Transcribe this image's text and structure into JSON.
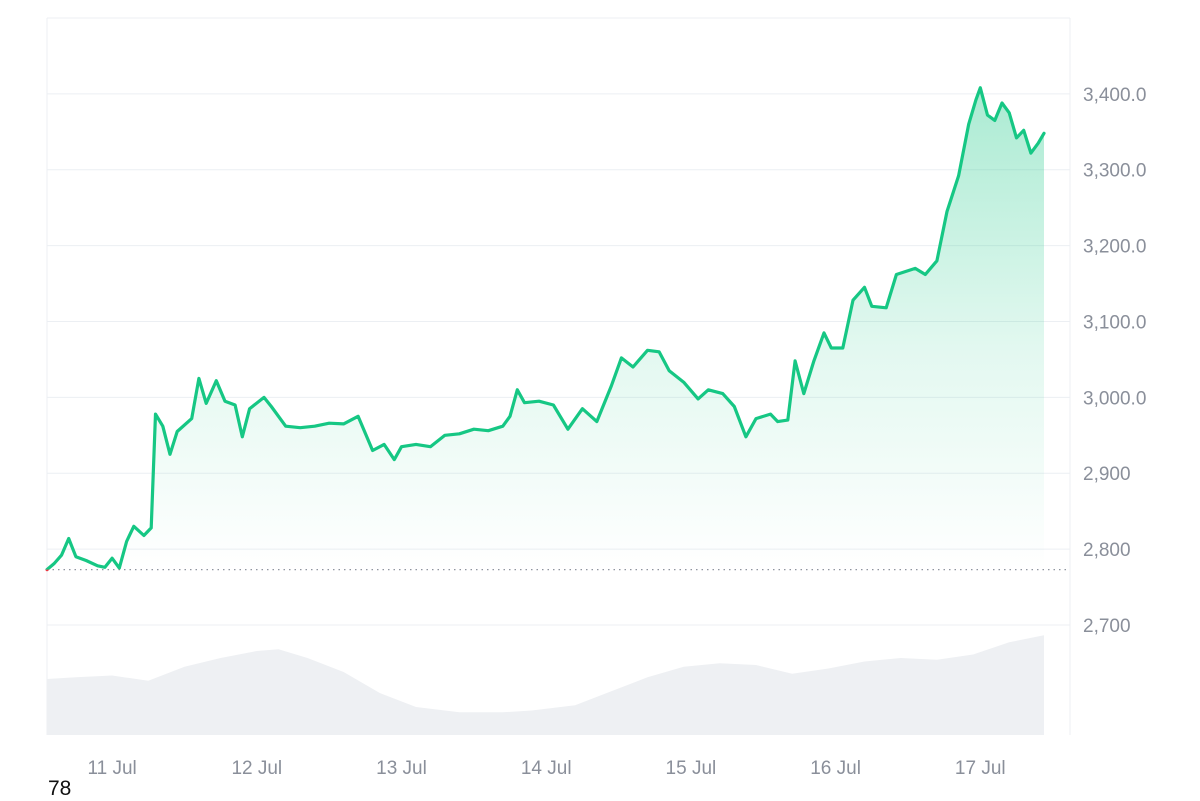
{
  "chart_data": {
    "type": "area",
    "x_tick_labels": [
      "11 Jul",
      "12 Jul",
      "13 Jul",
      "14 Jul",
      "15 Jul",
      "16 Jul",
      "17 Jul"
    ],
    "y_tick_labels": [
      "3,400.0",
      "3,300.0",
      "3,200.0",
      "3,100.0",
      "3,000.0",
      "2,900",
      "2,800",
      "2,700"
    ],
    "y_ticks": [
      3400,
      3300,
      3200,
      3100,
      3000,
      2900,
      2800,
      2700
    ],
    "ylim": [
      2555,
      3500
    ],
    "xlim": [
      10.55,
      17.62
    ],
    "grid": true,
    "baseline": 2773,
    "series": [
      {
        "color": "#16c784",
        "negative_color": "#ea3943",
        "points": [
          [
            10.55,
            2773
          ],
          [
            10.6,
            2781
          ],
          [
            10.65,
            2792
          ],
          [
            10.7,
            2814
          ],
          [
            10.75,
            2790
          ],
          [
            10.82,
            2785
          ],
          [
            10.9,
            2778
          ],
          [
            10.95,
            2776
          ],
          [
            11.0,
            2788
          ],
          [
            11.05,
            2775
          ],
          [
            11.1,
            2810
          ],
          [
            11.15,
            2830
          ],
          [
            11.22,
            2818
          ],
          [
            11.27,
            2828
          ],
          [
            11.3,
            2978
          ],
          [
            11.35,
            2962
          ],
          [
            11.4,
            2925
          ],
          [
            11.45,
            2955
          ],
          [
            11.55,
            2972
          ],
          [
            11.6,
            3025
          ],
          [
            11.65,
            2992
          ],
          [
            11.72,
            3022
          ],
          [
            11.78,
            2995
          ],
          [
            11.85,
            2990
          ],
          [
            11.9,
            2948
          ],
          [
            11.95,
            2985
          ],
          [
            12.05,
            3000
          ],
          [
            12.1,
            2988
          ],
          [
            12.2,
            2962
          ],
          [
            12.3,
            2960
          ],
          [
            12.4,
            2962
          ],
          [
            12.5,
            2966
          ],
          [
            12.6,
            2965
          ],
          [
            12.7,
            2975
          ],
          [
            12.8,
            2930
          ],
          [
            12.88,
            2938
          ],
          [
            12.95,
            2918
          ],
          [
            13.0,
            2935
          ],
          [
            13.1,
            2938
          ],
          [
            13.2,
            2935
          ],
          [
            13.3,
            2950
          ],
          [
            13.4,
            2952
          ],
          [
            13.5,
            2958
          ],
          [
            13.6,
            2956
          ],
          [
            13.7,
            2962
          ],
          [
            13.75,
            2975
          ],
          [
            13.8,
            3010
          ],
          [
            13.85,
            2993
          ],
          [
            13.95,
            2995
          ],
          [
            14.05,
            2990
          ],
          [
            14.15,
            2958
          ],
          [
            14.25,
            2985
          ],
          [
            14.35,
            2968
          ],
          [
            14.45,
            3015
          ],
          [
            14.52,
            3052
          ],
          [
            14.6,
            3040
          ],
          [
            14.7,
            3062
          ],
          [
            14.78,
            3060
          ],
          [
            14.85,
            3035
          ],
          [
            14.95,
            3020
          ],
          [
            15.05,
            2998
          ],
          [
            15.12,
            3010
          ],
          [
            15.22,
            3005
          ],
          [
            15.3,
            2988
          ],
          [
            15.38,
            2948
          ],
          [
            15.45,
            2972
          ],
          [
            15.55,
            2978
          ],
          [
            15.6,
            2968
          ],
          [
            15.67,
            2970
          ],
          [
            15.72,
            3048
          ],
          [
            15.78,
            3005
          ],
          [
            15.85,
            3048
          ],
          [
            15.92,
            3085
          ],
          [
            15.97,
            3065
          ],
          [
            16.05,
            3065
          ],
          [
            16.12,
            3128
          ],
          [
            16.2,
            3145
          ],
          [
            16.25,
            3120
          ],
          [
            16.35,
            3118
          ],
          [
            16.42,
            3162
          ],
          [
            16.55,
            3170
          ],
          [
            16.62,
            3162
          ],
          [
            16.7,
            3180
          ],
          [
            16.77,
            3245
          ],
          [
            16.85,
            3292
          ],
          [
            16.92,
            3360
          ],
          [
            16.97,
            3392
          ],
          [
            17.0,
            3408
          ],
          [
            17.05,
            3372
          ],
          [
            17.1,
            3365
          ],
          [
            17.15,
            3388
          ],
          [
            17.2,
            3375
          ],
          [
            17.25,
            3342
          ],
          [
            17.3,
            3352
          ],
          [
            17.35,
            3322
          ],
          [
            17.4,
            3335
          ],
          [
            17.44,
            3348
          ]
        ]
      }
    ],
    "volume": {
      "color": "#eef0f3",
      "points": [
        [
          10.55,
          0.32
        ],
        [
          10.75,
          0.33
        ],
        [
          11.0,
          0.34
        ],
        [
          11.25,
          0.31
        ],
        [
          11.5,
          0.39
        ],
        [
          11.75,
          0.44
        ],
        [
          12.0,
          0.48
        ],
        [
          12.15,
          0.49
        ],
        [
          12.35,
          0.44
        ],
        [
          12.6,
          0.36
        ],
        [
          12.85,
          0.24
        ],
        [
          13.1,
          0.16
        ],
        [
          13.4,
          0.13
        ],
        [
          13.7,
          0.13
        ],
        [
          13.9,
          0.14
        ],
        [
          14.2,
          0.17
        ],
        [
          14.45,
          0.25
        ],
        [
          14.7,
          0.33
        ],
        [
          14.95,
          0.39
        ],
        [
          15.2,
          0.41
        ],
        [
          15.45,
          0.4
        ],
        [
          15.7,
          0.35
        ],
        [
          15.95,
          0.38
        ],
        [
          16.2,
          0.42
        ],
        [
          16.45,
          0.44
        ],
        [
          16.7,
          0.43
        ],
        [
          16.95,
          0.46
        ],
        [
          17.2,
          0.53
        ],
        [
          17.44,
          0.57
        ]
      ]
    }
  },
  "footer": {
    "corner_label": "78"
  }
}
